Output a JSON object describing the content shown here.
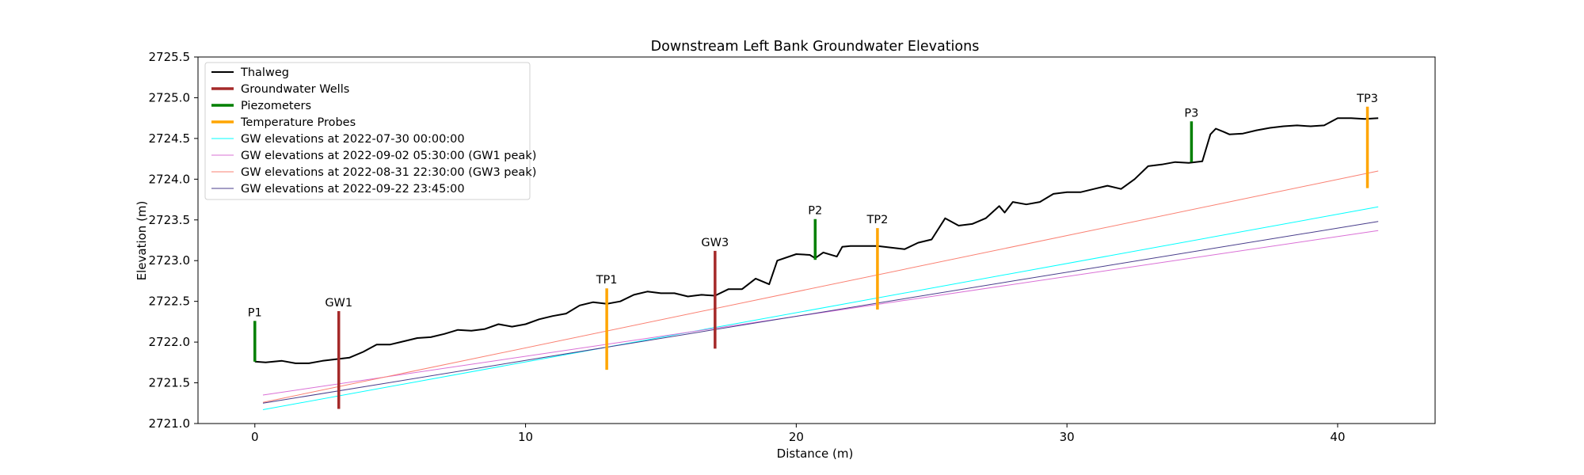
{
  "chart_data": {
    "type": "line",
    "title": "Downstream Left Bank Groundwater Elevations",
    "xlabel": "Distance (m)",
    "ylabel": "Elevation (m)",
    "xlim": [
      -2.1,
      43.6
    ],
    "ylim": [
      2721.0,
      2725.5
    ],
    "xticks": [
      0,
      10,
      20,
      30,
      40
    ],
    "xtick_labels": [
      "0",
      "10",
      "20",
      "30",
      "40"
    ],
    "yticks": [
      2721.0,
      2721.5,
      2722.0,
      2722.5,
      2723.0,
      2723.5,
      2724.0,
      2724.5,
      2725.0,
      2725.5
    ],
    "ytick_labels": [
      "2721.0",
      "2721.5",
      "2722.0",
      "2722.5",
      "2723.0",
      "2723.5",
      "2724.0",
      "2724.5",
      "2725.0",
      "2725.5"
    ],
    "grid": false,
    "legend_position": "top-left",
    "legend": [
      {
        "label": "Thalweg",
        "color": "#000000",
        "kind": "thalweg"
      },
      {
        "label": "Groundwater Wells",
        "color": "#a52a2a",
        "kind": "well"
      },
      {
        "label": "Piezometers",
        "color": "#008000",
        "kind": "piezometer"
      },
      {
        "label": "Temperature Probes",
        "color": "#ffa500",
        "kind": "probe"
      },
      {
        "label": "GW elevations at 2022-07-30 00:00:00",
        "color": "#00ffff",
        "kind": "gw"
      },
      {
        "label": "GW elevations at 2022-09-02 05:30:00 (GW1 peak)",
        "color": "#da70d6",
        "kind": "gw"
      },
      {
        "label": "GW elevations at 2022-08-31 22:30:00 (GW3 peak)",
        "color": "#fa8072",
        "kind": "gw"
      },
      {
        "label": "GW elevations at 2022-09-22 23:45:00",
        "color": "#483d8b",
        "kind": "gw"
      }
    ],
    "thalweg": {
      "x": [
        0,
        0.4,
        1,
        1.5,
        2,
        2.5,
        3,
        3.5,
        4,
        4.5,
        5,
        5.5,
        6,
        6.5,
        7,
        7.5,
        8,
        8.5,
        9,
        9.5,
        10,
        10.5,
        11,
        11.5,
        12,
        12.5,
        13,
        13.5,
        14,
        14.5,
        15,
        15.5,
        16,
        16.5,
        17,
        17.5,
        18,
        18.5,
        19,
        19.3,
        20,
        20.5,
        20.7,
        21,
        21.5,
        21.7,
        22,
        23,
        24,
        24.5,
        25,
        25.5,
        26,
        26.5,
        27,
        27.5,
        27.7,
        28,
        28.5,
        29,
        29.5,
        30,
        30.5,
        31,
        31.5,
        32,
        32.5,
        33,
        33.5,
        34,
        34.5,
        35,
        35.3,
        35.5,
        35.8,
        36,
        36.5,
        37,
        37.5,
        38,
        38.5,
        39,
        39.5,
        40,
        40.5,
        41,
        41.5
      ],
      "y": [
        2721.76,
        2721.75,
        2721.77,
        2721.74,
        2721.74,
        2721.77,
        2721.79,
        2721.81,
        2721.88,
        2721.97,
        2721.97,
        2722.01,
        2722.05,
        2722.06,
        2722.1,
        2722.15,
        2722.14,
        2722.16,
        2722.22,
        2722.19,
        2722.22,
        2722.28,
        2722.32,
        2722.35,
        2722.45,
        2722.49,
        2722.47,
        2722.5,
        2722.58,
        2722.62,
        2722.6,
        2722.6,
        2722.56,
        2722.58,
        2722.57,
        2722.65,
        2722.65,
        2722.78,
        2722.71,
        2723.0,
        2723.08,
        2723.07,
        2723.03,
        2723.1,
        2723.05,
        2723.17,
        2723.18,
        2723.18,
        2723.14,
        2723.22,
        2723.26,
        2723.52,
        2723.43,
        2723.45,
        2723.52,
        2723.67,
        2723.59,
        2723.72,
        2723.69,
        2723.72,
        2723.82,
        2723.84,
        2723.84,
        2723.88,
        2723.92,
        2723.88,
        2724.0,
        2724.16,
        2724.18,
        2724.21,
        2724.2,
        2724.22,
        2724.55,
        2724.62,
        2724.58,
        2724.55,
        2724.56,
        2724.6,
        2724.63,
        2724.65,
        2724.66,
        2724.65,
        2724.66,
        2724.75,
        2724.75,
        2724.74,
        2724.75
      ]
    },
    "gw_series": [
      {
        "name": "GW elevations at 2022-07-30 00:00:00",
        "color": "#00ffff",
        "x": [
          0.3,
          41.5
        ],
        "y": [
          2721.17,
          2723.66
        ]
      },
      {
        "name": "GW elevations at 2022-09-02 05:30:00 (GW1 peak)",
        "color": "#da70d6",
        "x": [
          0.3,
          41.5
        ],
        "y": [
          2721.35,
          2723.37
        ]
      },
      {
        "name": "GW elevations at 2022-08-31 22:30:00 (GW3 peak)",
        "color": "#fa8072",
        "x": [
          0.3,
          41.5
        ],
        "y": [
          2721.26,
          2724.1
        ]
      },
      {
        "name": "GW elevations at 2022-09-22 23:45:00",
        "color": "#483d8b",
        "x": [
          0.3,
          41.5
        ],
        "y": [
          2721.25,
          2723.48
        ]
      }
    ],
    "instruments": [
      {
        "label": "P1",
        "kind": "piezometer",
        "color": "#008000",
        "x": 0.0,
        "top": 2722.26,
        "bottom": 2721.76
      },
      {
        "label": "GW1",
        "kind": "well",
        "color": "#a52a2a",
        "x": 3.1,
        "top": 2722.38,
        "bottom": 2721.18
      },
      {
        "label": "TP1",
        "kind": "probe",
        "color": "#ffa500",
        "x": 13.0,
        "top": 2722.66,
        "bottom": 2721.66
      },
      {
        "label": "GW3",
        "kind": "well",
        "color": "#a52a2a",
        "x": 17.0,
        "top": 2723.12,
        "bottom": 2721.92
      },
      {
        "label": "P2",
        "kind": "piezometer",
        "color": "#008000",
        "x": 20.7,
        "top": 2723.51,
        "bottom": 2723.01
      },
      {
        "label": "TP2",
        "kind": "probe",
        "color": "#ffa500",
        "x": 23.0,
        "top": 2723.4,
        "bottom": 2722.4
      },
      {
        "label": "P3",
        "kind": "piezometer",
        "color": "#008000",
        "x": 34.6,
        "top": 2724.71,
        "bottom": 2724.21
      },
      {
        "label": "TP3",
        "kind": "probe",
        "color": "#ffa500",
        "x": 41.1,
        "top": 2724.89,
        "bottom": 2723.89
      }
    ]
  }
}
